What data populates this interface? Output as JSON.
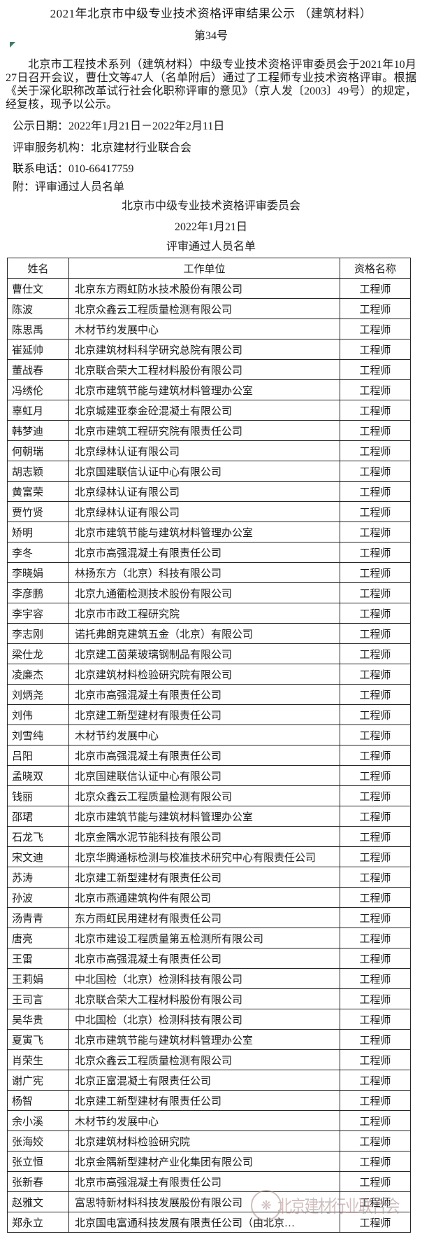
{
  "colors": {
    "watermark": "#a8898a",
    "text": "#1c1c1c"
  },
  "page": {
    "title": "2021年北京市中级专业技术资格评审结果公示 （建筑材料）",
    "doc_number": "第34号",
    "paragraph": "北京市工程技术系列（建筑材料）中级专业技术资格评审委员会于2021年10月27日召开会议，曹仕文等47人（名单附后）通过了工程师专业技术资格评审。根据《关于深化职称改革试行社会化职称评审的意见》（京人发〔2003〕49号）的规定，经复核，现予以公示。",
    "publicity_period": "公示日期：2022年1月21日－2022年2月11日",
    "review_agency": "评审服务机构：北京建材行业联合会",
    "contact_phone": "联系电话：010-66417759",
    "attachment_note": "附：评审通过人员名单",
    "committee": "北京市中级专业技术资格评审委员会",
    "committee_date": "2022年1月21日",
    "list_title": "评审通过人员名单"
  },
  "table": {
    "headers": [
      "姓名",
      "工作单位",
      "资格名称"
    ],
    "rows": [
      [
        "曹仕文",
        "北京东方雨虹防水技术股份有限公司",
        "工程师"
      ],
      [
        "陈波",
        "北京众鑫云工程质量检测有限公司",
        "工程师"
      ],
      [
        "陈思禹",
        "木材节约发展中心",
        "工程师"
      ],
      [
        "崔延帅",
        "北京建筑材料科学研究总院有限公司",
        "工程师"
      ],
      [
        "董战春",
        "北京联合荣大工程材料股份有限公司",
        "工程师"
      ],
      [
        "冯绣伦",
        "北京市建筑节能与建筑材料管理办公室",
        "工程师"
      ],
      [
        "辜虹月",
        "北京城建亚泰金砼混凝土有限公司",
        "工程师"
      ],
      [
        "韩梦迪",
        "北京市建筑工程研究院有限责任公司",
        "工程师"
      ],
      [
        "何朝瑞",
        "北京绿林认证有限公司",
        "工程师"
      ],
      [
        "胡志颖",
        "北京国建联信认证中心有限公司",
        "工程师"
      ],
      [
        "黄富荣",
        "北京绿林认证有限公司",
        "工程师"
      ],
      [
        "贾竹贤",
        "北京绿林认证有限公司",
        "工程师"
      ],
      [
        "矫明",
        "北京市建筑节能与建筑材料管理办公室",
        "工程师"
      ],
      [
        "李冬",
        "北京市高强混凝土有限责任公司",
        "工程师"
      ],
      [
        "李晓娟",
        "林扬东方（北京）科技有限公司",
        "工程师"
      ],
      [
        "李彦鹏",
        "北京九通衢检测技术股份有限公司",
        "工程师"
      ],
      [
        "李宇容",
        "北京市市政工程研究院",
        "工程师"
      ],
      [
        "李志刚",
        "诺托弗朗克建筑五金（北京）有限公司",
        "工程师"
      ],
      [
        "梁仕龙",
        "北京建工茵莱玻璃钢制品有限公司",
        "工程师"
      ],
      [
        "凌廉杰",
        "北京建筑材料检验研究院有限公司",
        "工程师"
      ],
      [
        "刘炳尧",
        "北京市高强混凝土有限责任公司",
        "工程师"
      ],
      [
        "刘伟",
        "北京建工新型建材有限责任公司",
        "工程师"
      ],
      [
        "刘雪纯",
        "木材节约发展中心",
        "工程师"
      ],
      [
        "吕阳",
        "北京市高强混凝土有限责任公司",
        "工程师"
      ],
      [
        "孟晓双",
        "北京国建联信认证中心有限公司",
        "工程师"
      ],
      [
        "钱丽",
        "北京众鑫云工程质量检测有限公司",
        "工程师"
      ],
      [
        "邵珺",
        "北京市建筑节能与建筑材料管理办公室",
        "工程师"
      ],
      [
        "石龙飞",
        "北京金隅水泥节能科技有限公司",
        "工程师"
      ],
      [
        "宋文迪",
        "北京华腾通标检测与校准技术研究中心有限责任公司",
        "工程师"
      ],
      [
        "苏涛",
        "北京建工新型建材有限责任公司",
        "工程师"
      ],
      [
        "孙波",
        "北京市燕通建筑构件有限公司",
        "工程师"
      ],
      [
        "汤青青",
        "东方雨虹民用建材有限责任公司",
        "工程师"
      ],
      [
        "唐亮",
        "北京市建设工程质量第五检测所有限公司",
        "工程师"
      ],
      [
        "王雷",
        "北京市高强混凝土有限责任公司",
        "工程师"
      ],
      [
        "王莉娟",
        "中北国检（北京）检测科技有限公司",
        "工程师"
      ],
      [
        "王司言",
        "北京联合荣大工程材料股份有限公司",
        "工程师"
      ],
      [
        "吴华贵",
        "中北国检（北京）检测科技有限公司",
        "工程师"
      ],
      [
        "夏寅飞",
        "北京市建筑节能与建筑材料管理办公室",
        "工程师"
      ],
      [
        "肖荣生",
        "北京众鑫云工程质量检测有限公司",
        "工程师"
      ],
      [
        "谢广宪",
        "北京正富混凝土有限责任公司",
        "工程师"
      ],
      [
        "杨智",
        "北京建工新型建材有限责任公司",
        "工程师"
      ],
      [
        "余小溪",
        "木材节约发展中心",
        "工程师"
      ],
      [
        "张海姣",
        "北京建筑材料检验研究院",
        "工程师"
      ],
      [
        "张立恒",
        "北京金隅新型建材产业化集团有限公司",
        "工程师"
      ],
      [
        "张新春",
        "北京市高强混凝土有限责任公司",
        "工程师"
      ],
      [
        "赵雅文",
        "富思特新材料科技发展股份有限公司",
        "工程师"
      ],
      [
        "郑永立",
        "北京国电富通科技发展有限责任公司（由北京…",
        "工程师"
      ]
    ]
  },
  "watermark": {
    "text": "北京建材行业联合会",
    "logo_glyph": "❋"
  }
}
